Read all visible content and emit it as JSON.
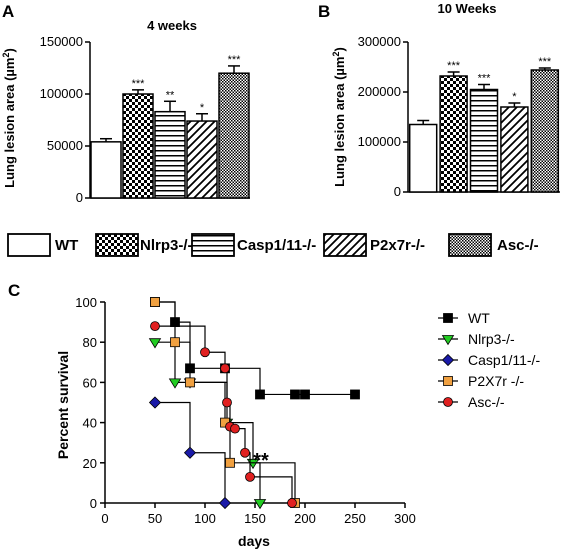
{
  "legend": {
    "entries": [
      {
        "label": "WT",
        "pattern": "white"
      },
      {
        "label": "Nlrp3-/-",
        "pattern": "checker"
      },
      {
        "label": "Casp1/11-/-",
        "pattern": "hlines"
      },
      {
        "label": "P2x7r-/-",
        "pattern": "diag"
      },
      {
        "label": "Asc-/-",
        "pattern": "fine"
      }
    ]
  },
  "chart_data": [
    {
      "panel": "A",
      "type": "bar",
      "title": "4 weeks",
      "ylabel_prefix": "Lung lesion area (",
      "ylabel_unit": "µm",
      "ylabel_sup": "2",
      "ylabel_suffix": ")",
      "ylim": [
        0,
        150000
      ],
      "yticks": [
        "0",
        "50000",
        "100000",
        "150000"
      ],
      "categories": [
        "WT",
        "Nlrp3-/-",
        "Casp1/11-/-",
        "P2x7r-/-",
        "Asc-/-"
      ],
      "values": [
        54000,
        100000,
        83000,
        74000,
        120000
      ],
      "errors": [
        3000,
        4000,
        10000,
        7000,
        7000
      ],
      "significance": [
        "",
        "***",
        "**",
        "*",
        "***"
      ]
    },
    {
      "panel": "B",
      "type": "bar",
      "title": "10 Weeks",
      "ylabel_prefix": "Lung lesion area (",
      "ylabel_unit": "µm",
      "ylabel_sup": "2",
      "ylabel_suffix": ")",
      "ylim": [
        0,
        300000
      ],
      "yticks": [
        "0",
        "100000",
        "200000",
        "300000"
      ],
      "categories": [
        "WT",
        "Nlrp3-/-",
        "Casp1/11-/-",
        "P2x7r-/-",
        "Asc-/-"
      ],
      "values": [
        135000,
        232000,
        205000,
        170000,
        244000
      ],
      "errors": [
        8000,
        8000,
        10000,
        8000,
        4000
      ],
      "significance": [
        "",
        "***",
        "***",
        "*",
        "***"
      ]
    },
    {
      "panel": "C",
      "type": "line",
      "subtype": "kaplan-meier",
      "xlabel": "days",
      "ylabel": "Percent survival",
      "xlim": [
        0,
        300
      ],
      "ylim": [
        0,
        100
      ],
      "xticks": [
        "0",
        "50",
        "100",
        "150",
        "200",
        "250",
        "300"
      ],
      "yticks": [
        "0",
        "20",
        "40",
        "60",
        "80",
        "100"
      ],
      "annotation": "**",
      "annotation_at": {
        "x": 150,
        "y": 20
      },
      "series": [
        {
          "name": "WT",
          "color": "#000000",
          "marker": "square",
          "x": [
            50,
            70,
            85,
            120,
            155,
            190,
            200,
            250
          ],
          "y": [
            100,
            90,
            67,
            67,
            54,
            54,
            54,
            54
          ]
        },
        {
          "name": "Nlrp3-/-",
          "color": "#22cc22",
          "marker": "triangle-down",
          "x": [
            50,
            70,
            85,
            122,
            148,
            155
          ],
          "y": [
            80,
            60,
            60,
            40,
            20,
            0
          ]
        },
        {
          "name": "Casp1/11-/-",
          "color": "#1a1aa8",
          "marker": "diamond",
          "x": [
            50,
            85,
            120
          ],
          "y": [
            50,
            25,
            0
          ]
        },
        {
          "name": "P2X7r -/-",
          "color": "#f0a040",
          "marker": "square",
          "x": [
            50,
            70,
            85,
            120,
            125,
            190
          ],
          "y": [
            100,
            80,
            60,
            40,
            20,
            0
          ]
        },
        {
          "name": "Asc-/-",
          "color": "#e02020",
          "marker": "circle",
          "x": [
            50,
            100,
            120,
            122,
            125,
            130,
            140,
            145,
            187
          ],
          "y": [
            88,
            75,
            67,
            50,
            38,
            37,
            25,
            13,
            0
          ]
        }
      ]
    }
  ],
  "panel_labels": {
    "a": "A",
    "b": "B",
    "c": "C"
  }
}
